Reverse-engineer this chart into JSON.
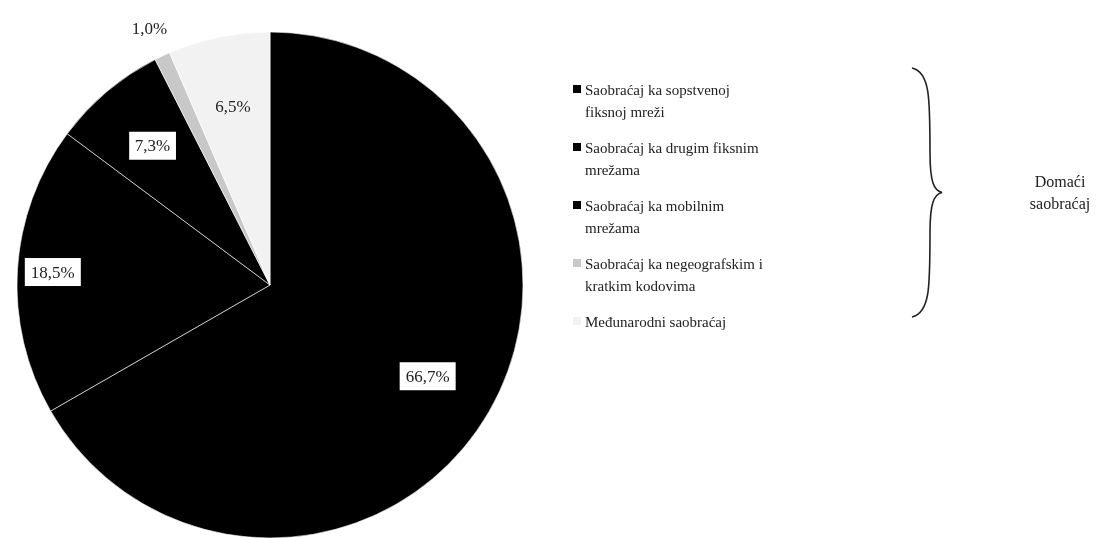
{
  "chart_data": {
    "type": "pie",
    "categories": [
      "Saobraćaj ka sopstvenoj fiksnoj mreži",
      "Saobraćaj ka drugim fiksnim mrežama",
      "Saobraćaj ka mobilnim mrežama",
      "Saobraćaj ka negeografskim i kratkim kodovima",
      "Međunarodni saobraćaj"
    ],
    "values": [
      66.7,
      18.5,
      7.3,
      1.0,
      6.5
    ],
    "value_labels": [
      "66,7%",
      "18,5%",
      "7,3%",
      "1,0%",
      "6,5%"
    ],
    "colors": [
      "#000000",
      "#000000",
      "#000000",
      "#c8c8c8",
      "#f2f2f2"
    ],
    "legend": "right",
    "annotations": [
      "Domaći saobraćaj"
    ]
  }
}
